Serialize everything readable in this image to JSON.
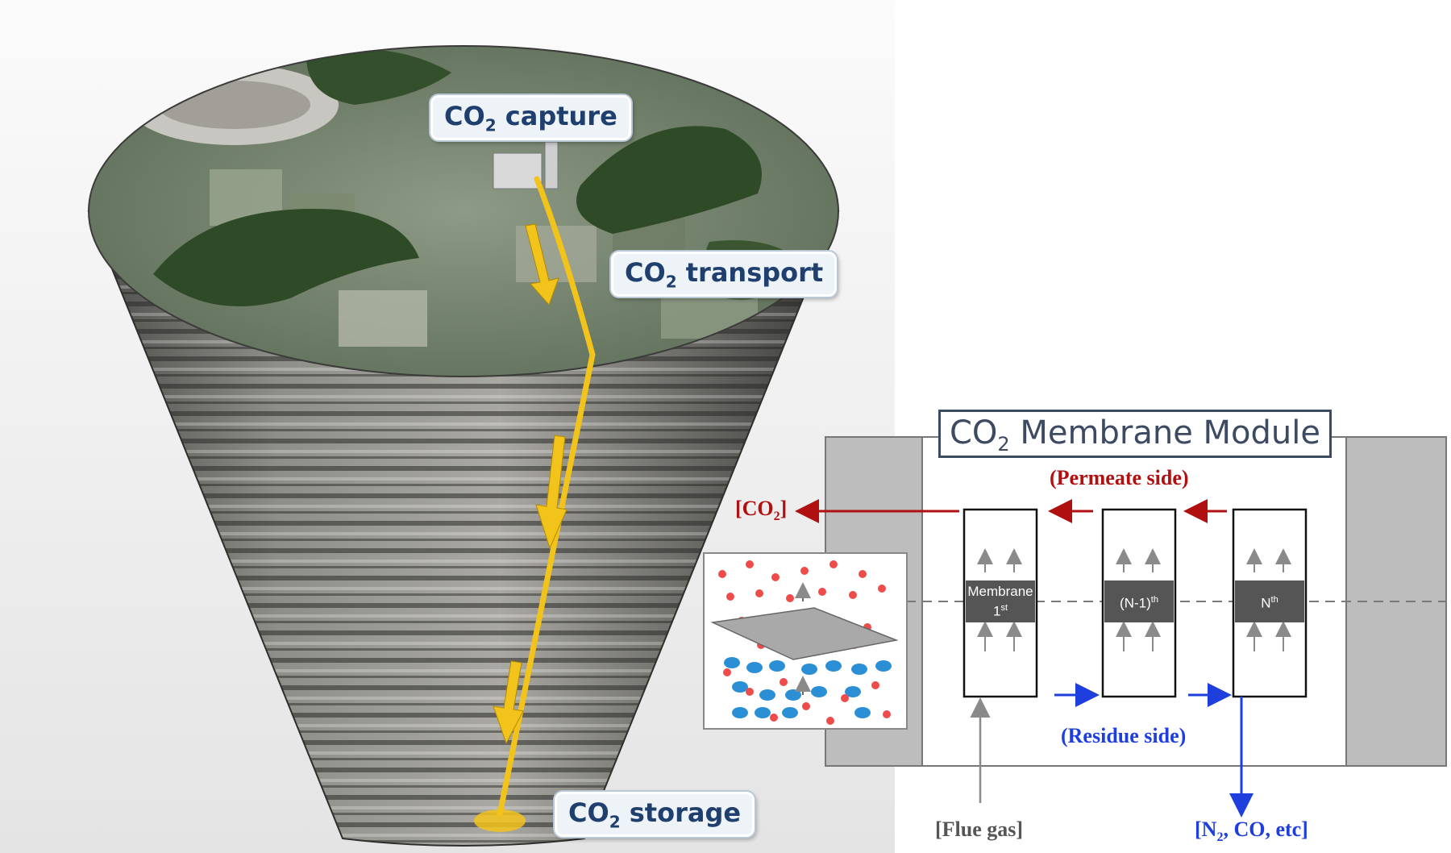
{
  "left_panel": {
    "capture": {
      "prefix": "CO",
      "sub": "2",
      "suffix": " capture"
    },
    "transport": {
      "prefix": "CO",
      "sub": "2",
      "suffix": " transport"
    },
    "storage": {
      "prefix": "CO",
      "sub": "2",
      "suffix": " storage"
    }
  },
  "module": {
    "title": {
      "prefix": "CO",
      "sub": "2",
      "suffix": " Membrane Module"
    },
    "permeate_label": "(Permeate side)",
    "residue_label": "(Residue side)",
    "co2_output": {
      "open": "[CO",
      "sub": "2",
      "close": "]"
    },
    "flue_gas_label": "[Flue gas]",
    "residue_output": {
      "open": "[N",
      "sub": "2",
      "close": ", CO, etc]"
    },
    "stages": [
      {
        "line1": "Membrane",
        "line2": "1",
        "sup": "st"
      },
      {
        "line1": "(N-1)",
        "sup": "th"
      },
      {
        "line1": "N",
        "sup": "th"
      }
    ]
  },
  "colors": {
    "permeate": "#b01010",
    "residue": "#1e3fdd",
    "pipe": "#f2c31b",
    "title_border": "#3c4a62",
    "co2_molecule": "#ee4b4b",
    "n2_molecule": "#2b8fd6"
  }
}
